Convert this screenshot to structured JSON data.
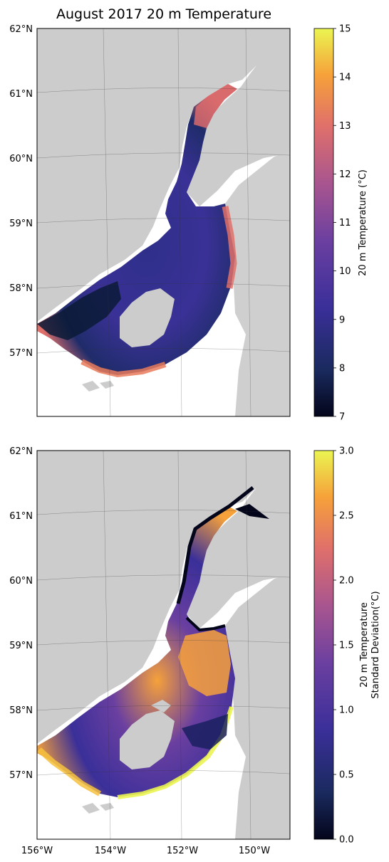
{
  "title": "August 2017 20 m Temperature",
  "panels": [
    {
      "id": "mean",
      "lat_ticks": [
        "62°N",
        "61°N",
        "60°N",
        "59°N",
        "58°N",
        "57°N"
      ],
      "colorbar": {
        "label_lines": [
          "20 m Temperature (°C)"
        ],
        "ticks": [
          "7",
          "8",
          "9",
          "10",
          "11",
          "12",
          "13",
          "14",
          "15"
        ],
        "range": [
          7,
          15
        ]
      }
    },
    {
      "id": "stddev",
      "lat_ticks": [
        "62°N",
        "61°N",
        "60°N",
        "59°N",
        "58°N",
        "57°N"
      ],
      "lon_ticks": [
        "156°W",
        "154°W",
        "152°W",
        "150°W"
      ],
      "colorbar": {
        "label_lines": [
          "20 m Temperature",
          "Standard Deviation(°C)"
        ],
        "ticks": [
          "0.0",
          "0.5",
          "1.0",
          "1.5",
          "2.0",
          "2.5",
          "3.0"
        ],
        "range": [
          0,
          3
        ]
      }
    }
  ],
  "colors": {
    "land": "#cccccc",
    "colormap": [
      "#03051a",
      "#1a2a5e",
      "#3a2f99",
      "#6a3fa0",
      "#a8558f",
      "#e0706a",
      "#f6a13a",
      "#ebf551"
    ]
  }
}
